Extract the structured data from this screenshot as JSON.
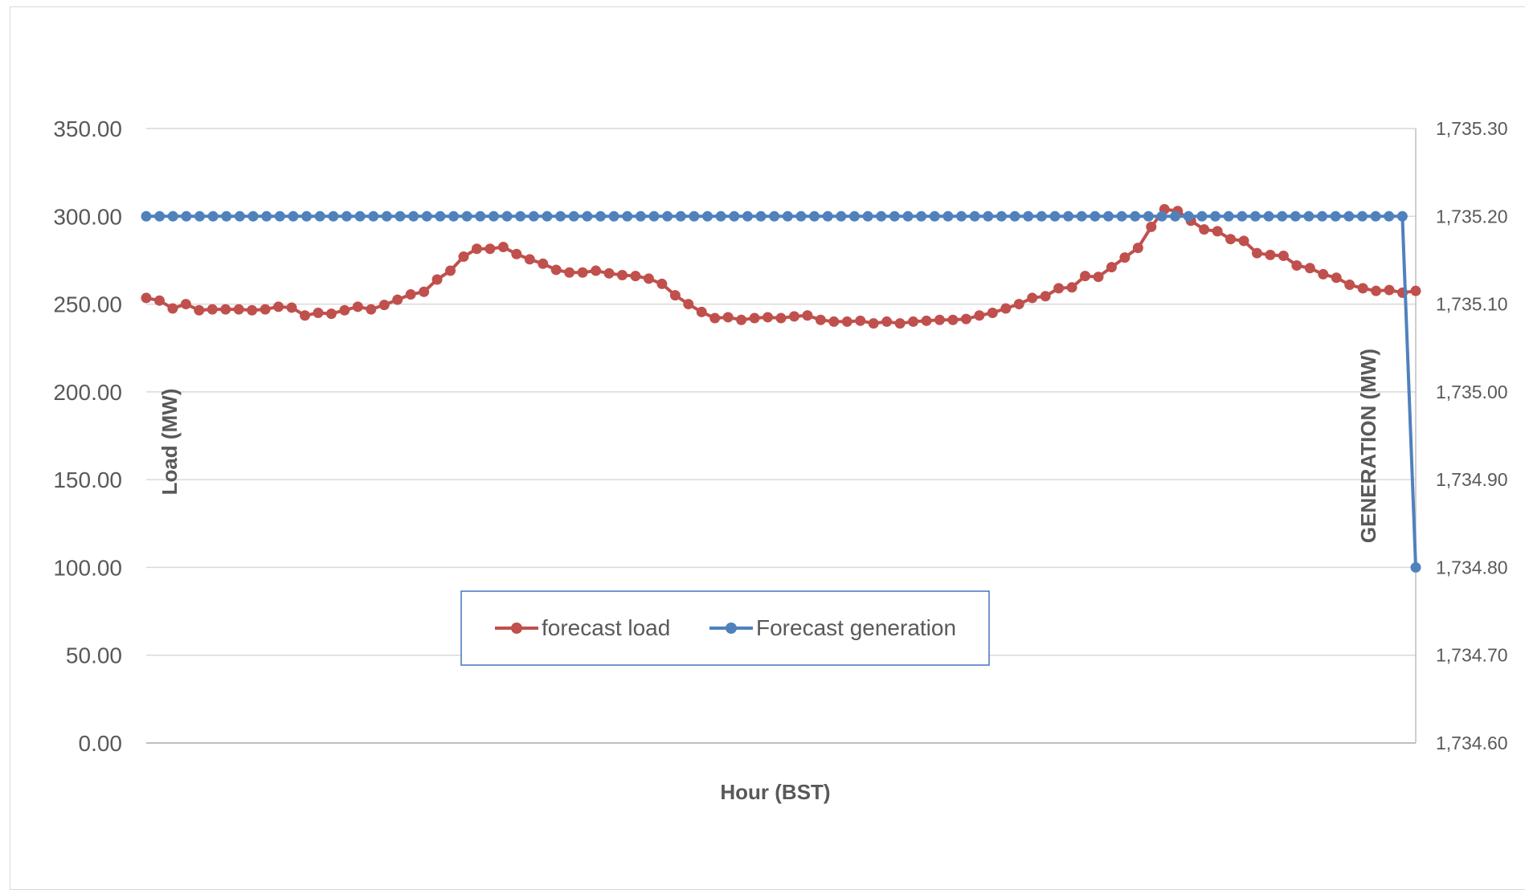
{
  "chart_data": {
    "type": "line",
    "title": "",
    "xlabel": "Hour (BST)",
    "ylabel": "Load (MW)",
    "y2label": "GENERATION (MW)",
    "ylim": [
      0,
      350
    ],
    "y2lim": [
      1734.6,
      1735.3
    ],
    "yticks": [
      "0.00",
      "50.00",
      "100.00",
      "150.00",
      "200.00",
      "250.00",
      "300.00",
      "350.00"
    ],
    "y2ticks": [
      "1,734.60",
      "1,734.70",
      "1,734.80",
      "1,734.90",
      "1,735.00",
      "1,735.10",
      "1,735.20",
      "1,735.30"
    ],
    "grid": true,
    "legend_position": "bottom-center",
    "series": [
      {
        "name": "forecast load",
        "axis": "left",
        "color": "#c0504d",
        "values": [
          253.5,
          252,
          247.5,
          250,
          246.5,
          247,
          247,
          247,
          246.5,
          247,
          248.5,
          248,
          243.5,
          245,
          244.5,
          246.5,
          248.5,
          247,
          249.5,
          252.5,
          255.5,
          257,
          264,
          269,
          277,
          281.5,
          281.5,
          282.5,
          278.5,
          275.5,
          273,
          269.5,
          268,
          268,
          269,
          267.5,
          266.5,
          266,
          264.5,
          261.5,
          255,
          250,
          245.5,
          242,
          242.5,
          241,
          242,
          242.5,
          242,
          243,
          243.5,
          241,
          240,
          240,
          240.5,
          239,
          240,
          239,
          240,
          240.5,
          241,
          241,
          241.5,
          243.5,
          245,
          247.5,
          250,
          253.5,
          254.5,
          259,
          259.5,
          266,
          265.5,
          271,
          276.5,
          282,
          294,
          304,
          303,
          297.5,
          292.5,
          291.5,
          287,
          286,
          279,
          278,
          277.5,
          272,
          270.5,
          267,
          265,
          261,
          259,
          257.5,
          258,
          256.5,
          257.5
        ]
      },
      {
        "name": "Forecast generation",
        "axis": "right",
        "color": "#4f81bd",
        "values": [
          1735.2,
          1735.2,
          1735.2,
          1735.2,
          1735.2,
          1735.2,
          1735.2,
          1735.2,
          1735.2,
          1735.2,
          1735.2,
          1735.2,
          1735.2,
          1735.2,
          1735.2,
          1735.2,
          1735.2,
          1735.2,
          1735.2,
          1735.2,
          1735.2,
          1735.2,
          1735.2,
          1735.2,
          1735.2,
          1735.2,
          1735.2,
          1735.2,
          1735.2,
          1735.2,
          1735.2,
          1735.2,
          1735.2,
          1735.2,
          1735.2,
          1735.2,
          1735.2,
          1735.2,
          1735.2,
          1735.2,
          1735.2,
          1735.2,
          1735.2,
          1735.2,
          1735.2,
          1735.2,
          1735.2,
          1735.2,
          1735.2,
          1735.2,
          1735.2,
          1735.2,
          1735.2,
          1735.2,
          1735.2,
          1735.2,
          1735.2,
          1735.2,
          1735.2,
          1735.2,
          1735.2,
          1735.2,
          1735.2,
          1735.2,
          1735.2,
          1735.2,
          1735.2,
          1735.2,
          1735.2,
          1735.2,
          1735.2,
          1735.2,
          1735.2,
          1735.2,
          1735.2,
          1735.2,
          1735.2,
          1735.2,
          1735.2,
          1735.2,
          1735.2,
          1735.2,
          1735.2,
          1735.2,
          1735.2,
          1735.2,
          1735.2,
          1735.2,
          1735.2,
          1735.2,
          1735.2,
          1735.2,
          1735.2,
          1735.2,
          1735.2,
          1734.8
        ]
      }
    ]
  }
}
